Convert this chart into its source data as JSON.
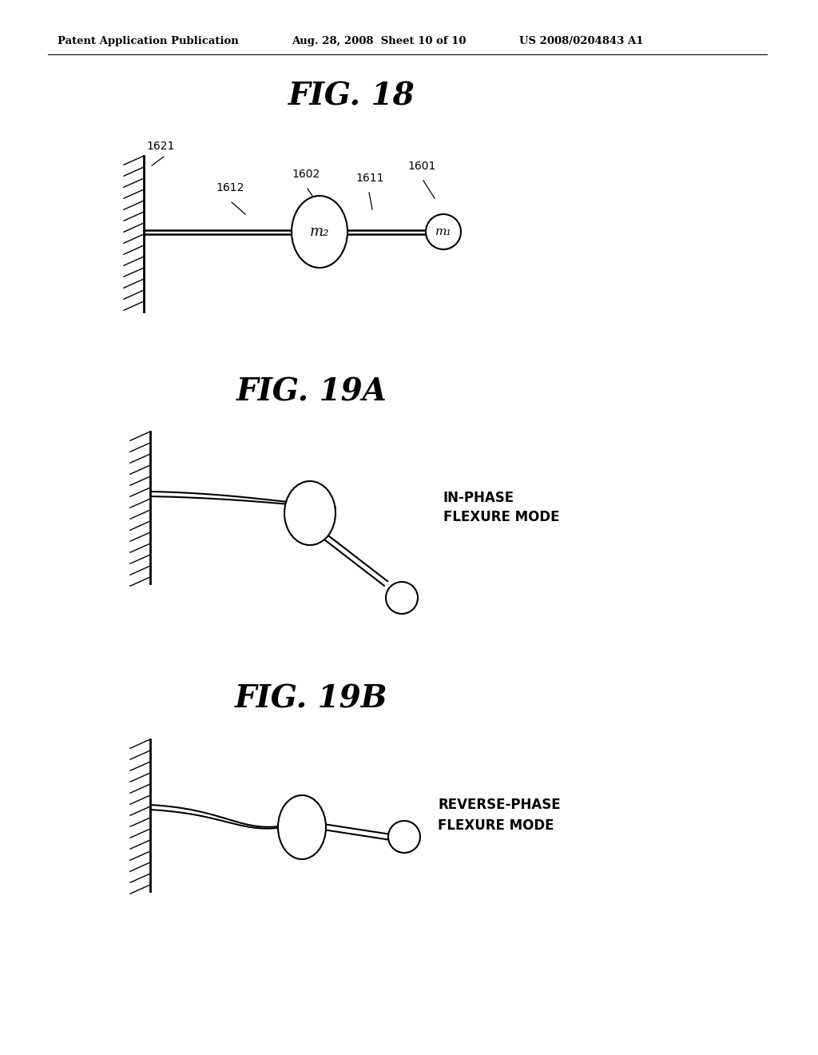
{
  "bg_color": "#ffffff",
  "header_left": "Patent Application Publication",
  "header_mid": "Aug. 28, 2008  Sheet 10 of 10",
  "header_right": "US 2008/0204843 A1",
  "fig18_title": "FIG. 18",
  "fig19a_title": "FIG. 19A",
  "fig19b_title": "FIG. 19B",
  "label_1621": "1621",
  "label_1612": "1612",
  "label_1602": "1602",
  "label_1611": "1611",
  "label_1601": "1601",
  "label_m2": "m₂",
  "label_m1": "m₁",
  "label_19a": "IN-PHASE\nFLEXURE MODE",
  "label_19b": "REVERSE-PHASE\nFLEXURE MODE"
}
